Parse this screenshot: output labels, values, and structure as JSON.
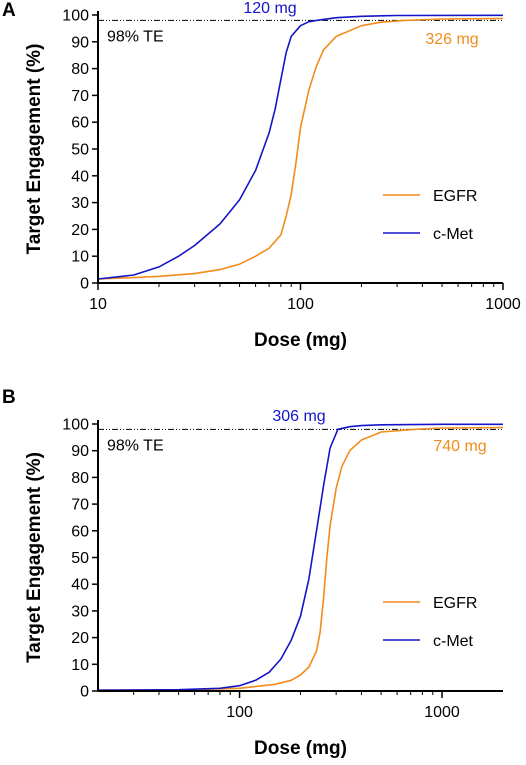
{
  "colors": {
    "EGFR": "#f28c1b",
    "c-Met": "#1515c8",
    "axis": "#000000",
    "reference_line": "#000000"
  },
  "chart_data": [
    {
      "panel": "A",
      "type": "line",
      "xscale": "log",
      "xlim": [
        10,
        1000
      ],
      "ylim": [
        0,
        100
      ],
      "xticks": [
        10,
        100,
        1000
      ],
      "xtick_labels": [
        "10",
        "100",
        "1000"
      ],
      "yticks": [
        0,
        10,
        20,
        30,
        40,
        50,
        60,
        70,
        80,
        90,
        100
      ],
      "ytick_labels": [
        "0",
        "10",
        "20",
        "30",
        "40",
        "50",
        "60",
        "70",
        "80",
        "90",
        "100"
      ],
      "xlabel": "Dose (mg)",
      "ylabel": "Target Engagement (%)",
      "reference_line": {
        "y": 98,
        "label": "98% TE"
      },
      "annotations": [
        {
          "text": "120 mg",
          "series": "c-Met",
          "x": 120,
          "y": 98
        },
        {
          "text": "326 mg",
          "series": "EGFR",
          "x": 326,
          "y": 98
        }
      ],
      "legend": {
        "position": "lower-right",
        "entries": [
          "EGFR",
          "c-Met"
        ]
      },
      "series": [
        {
          "name": "EGFR",
          "x": [
            10,
            15,
            20,
            30,
            40,
            50,
            60,
            70,
            80,
            85,
            90,
            95,
            100,
            110,
            120,
            130,
            150,
            200,
            250,
            326,
            500,
            1000
          ],
          "y": [
            1.5,
            2,
            2.5,
            3.5,
            5,
            7,
            10,
            13,
            18,
            25,
            33,
            45,
            58,
            72,
            81,
            87,
            92,
            96,
            97.3,
            98,
            98.5,
            98.7
          ]
        },
        {
          "name": "c-Met",
          "x": [
            10,
            15,
            20,
            25,
            30,
            40,
            50,
            60,
            70,
            75,
            80,
            85,
            90,
            100,
            110,
            120,
            150,
            200,
            300,
            1000
          ],
          "y": [
            1.5,
            3,
            6,
            10,
            14,
            22,
            31,
            42,
            56,
            65,
            76,
            86,
            92,
            96,
            97.5,
            98,
            99,
            99.5,
            99.8,
            99.9
          ]
        }
      ]
    },
    {
      "panel": "B",
      "type": "line",
      "xscale": "log",
      "xlim": [
        20,
        2000
      ],
      "ylim": [
        0,
        100
      ],
      "xticks": [
        100,
        1000
      ],
      "xtick_labels": [
        "100",
        "1000"
      ],
      "yticks": [
        0,
        10,
        20,
        30,
        40,
        50,
        60,
        70,
        80,
        90,
        100
      ],
      "ytick_labels": [
        "0",
        "10",
        "20",
        "30",
        "40",
        "50",
        "60",
        "70",
        "80",
        "90",
        "100"
      ],
      "xlabel": "Dose (mg)",
      "ylabel": "Target Engagement (%)",
      "reference_line": {
        "y": 98,
        "label": "98% TE"
      },
      "annotations": [
        {
          "text": "306 mg",
          "series": "c-Met",
          "x": 306,
          "y": 98
        },
        {
          "text": "740 mg",
          "series": "EGFR",
          "x": 740,
          "y": 98
        }
      ],
      "legend": {
        "position": "lower-right",
        "entries": [
          "EGFR",
          "c-Met"
        ]
      },
      "series": [
        {
          "name": "EGFR",
          "x": [
            20,
            50,
            100,
            150,
            180,
            200,
            220,
            240,
            250,
            260,
            270,
            280,
            300,
            320,
            350,
            400,
            500,
            740,
            1000,
            2000
          ],
          "y": [
            0.3,
            0.4,
            1,
            2.5,
            4,
            6,
            9,
            15,
            22,
            35,
            50,
            62,
            76,
            84,
            90,
            94,
            97,
            98,
            98.5,
            98.7
          ]
        },
        {
          "name": "c-Met",
          "x": [
            20,
            50,
            80,
            100,
            120,
            140,
            160,
            180,
            200,
            220,
            240,
            260,
            280,
            306,
            350,
            400,
            500,
            1000,
            2000
          ],
          "y": [
            0.3,
            0.5,
            1,
            2,
            4,
            7,
            12,
            19,
            28,
            42,
            60,
            77,
            91,
            98,
            99,
            99.4,
            99.7,
            99.9,
            99.9
          ]
        }
      ]
    }
  ]
}
